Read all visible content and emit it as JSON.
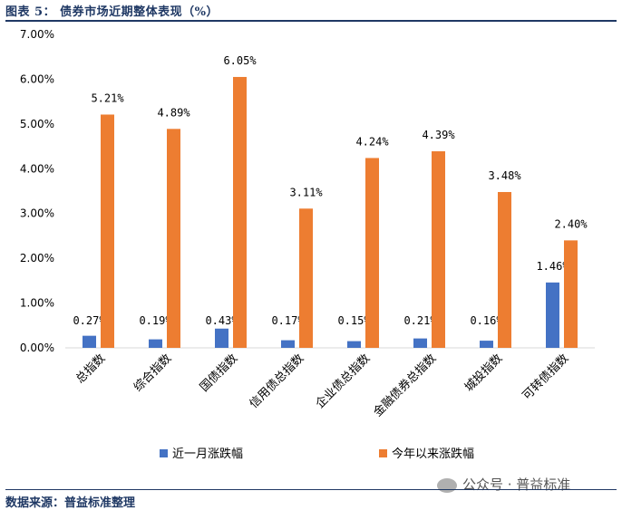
{
  "header": {
    "figure_title": "图表 5： 债券市场近期整体表现（%）"
  },
  "footer": {
    "source": "数据来源：普益标准整理",
    "watermark": "公众号 · 普益标准"
  },
  "colors": {
    "series_month": "#4472c4",
    "series_ytd": "#ed7d31",
    "title": "#1f3864"
  },
  "chart_data": {
    "type": "bar",
    "title": "债券市场近期整体表现（%）",
    "xlabel": "",
    "ylabel": "",
    "ylim": [
      0,
      7
    ],
    "y_ticks": [
      0,
      1,
      2,
      3,
      4,
      5,
      6,
      7
    ],
    "y_tick_labels": [
      "0.00%",
      "1.00%",
      "2.00%",
      "3.00%",
      "4.00%",
      "5.00%",
      "6.00%",
      "7.00%"
    ],
    "categories": [
      "总指数",
      "综合指数",
      "国债指数",
      "信用债总指数",
      "企业债总指数",
      "金融债券总指数",
      "城投指数",
      "可转债指数"
    ],
    "series": [
      {
        "name": "近一月涨跌幅",
        "color": "#4472c4",
        "values": [
          0.27,
          0.19,
          0.43,
          0.17,
          0.15,
          0.21,
          0.16,
          1.46
        ],
        "labels": [
          "0.27%",
          "0.19%",
          "0.43%",
          "0.17%",
          "0.15%",
          "0.21%",
          "0.16%",
          "1.46%"
        ]
      },
      {
        "name": "今年以来涨跌幅",
        "color": "#ed7d31",
        "values": [
          5.21,
          4.89,
          6.05,
          3.11,
          4.24,
          4.39,
          3.48,
          2.4
        ],
        "labels": [
          "5.21%",
          "4.89%",
          "6.05%",
          "3.11%",
          "4.24%",
          "4.39%",
          "3.48%",
          "2.40%"
        ]
      }
    ],
    "grid": false,
    "legend": "bottom"
  }
}
